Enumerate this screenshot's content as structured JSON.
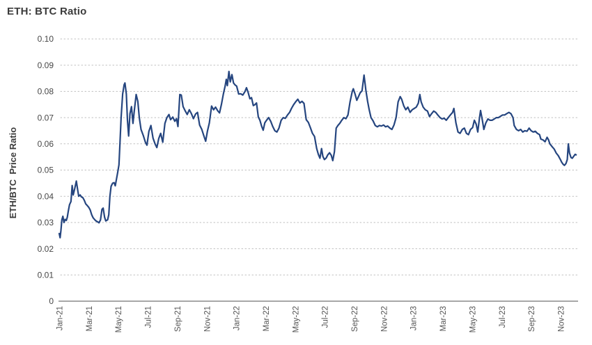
{
  "title": "ETH: BTC Ratio",
  "colors": {
    "line": "#25457f",
    "grid": "#bfbfbf",
    "axis": "#8a8a8a",
    "title": "#3b3b3b",
    "tick_label": "#555555"
  },
  "chart_data": {
    "type": "line",
    "title": "ETH: BTC Ratio",
    "xlabel": "",
    "ylabel": "ETH/BTC  Price Ratio",
    "ylim": [
      0,
      0.1
    ],
    "grid": "horizontal-dotted",
    "legend": "none",
    "y_tick_values": [
      0,
      0.01,
      0.02,
      0.03,
      0.04,
      0.05,
      0.06,
      0.07,
      0.08,
      0.09,
      0.1
    ],
    "y_tick_labels": [
      "0",
      "0.01",
      "0.02",
      "0.03",
      "0.04",
      "0.05",
      "0.06",
      "0.07",
      "0.08",
      "0.09",
      "0.10"
    ],
    "x_tick_labels": [
      "Jan-21",
      "Mar-21",
      "May-21",
      "Jul-21",
      "Sep-21",
      "Nov-21",
      "Jan-22",
      "Mar-22",
      "May-22",
      "Jul-22",
      "Sep-22",
      "Nov-22",
      "Jan-23",
      "Mar-23",
      "May-23",
      "Jul-23",
      "Sep-23",
      "Nov-23"
    ],
    "x_tick_months": [
      0,
      2,
      4,
      6,
      8,
      10,
      12,
      14,
      16,
      18,
      20,
      22,
      24,
      26,
      28,
      30,
      32,
      34
    ],
    "series": [
      {
        "name": "ETH/BTC Price Ratio",
        "points": [
          [
            0.0,
            0.0258
          ],
          [
            0.06,
            0.0242
          ],
          [
            0.12,
            0.027
          ],
          [
            0.18,
            0.031
          ],
          [
            0.25,
            0.0324
          ],
          [
            0.32,
            0.03
          ],
          [
            0.4,
            0.0312
          ],
          [
            0.48,
            0.0308
          ],
          [
            0.55,
            0.032
          ],
          [
            0.62,
            0.0344
          ],
          [
            0.7,
            0.0368
          ],
          [
            0.8,
            0.038
          ],
          [
            0.88,
            0.0441
          ],
          [
            0.95,
            0.0405
          ],
          [
            1.05,
            0.0428
          ],
          [
            1.16,
            0.0458
          ],
          [
            1.25,
            0.0425
          ],
          [
            1.32,
            0.04
          ],
          [
            1.42,
            0.0405
          ],
          [
            1.5,
            0.0398
          ],
          [
            1.6,
            0.0395
          ],
          [
            1.7,
            0.0385
          ],
          [
            1.8,
            0.0371
          ],
          [
            1.9,
            0.0365
          ],
          [
            2.0,
            0.0358
          ],
          [
            2.1,
            0.0348
          ],
          [
            2.2,
            0.033
          ],
          [
            2.3,
            0.0318
          ],
          [
            2.42,
            0.031
          ],
          [
            2.52,
            0.0305
          ],
          [
            2.62,
            0.0302
          ],
          [
            2.7,
            0.0299
          ],
          [
            2.8,
            0.031
          ],
          [
            2.9,
            0.035
          ],
          [
            2.98,
            0.0355
          ],
          [
            3.08,
            0.032
          ],
          [
            3.16,
            0.0306
          ],
          [
            3.28,
            0.031
          ],
          [
            3.36,
            0.033
          ],
          [
            3.44,
            0.04
          ],
          [
            3.52,
            0.0438
          ],
          [
            3.62,
            0.045
          ],
          [
            3.72,
            0.0452
          ],
          [
            3.8,
            0.044
          ],
          [
            3.88,
            0.0465
          ],
          [
            3.96,
            0.049
          ],
          [
            4.05,
            0.052
          ],
          [
            4.12,
            0.06
          ],
          [
            4.2,
            0.07
          ],
          [
            4.3,
            0.079
          ],
          [
            4.4,
            0.0825
          ],
          [
            4.46,
            0.0832
          ],
          [
            4.55,
            0.079
          ],
          [
            4.63,
            0.069
          ],
          [
            4.71,
            0.063
          ],
          [
            4.8,
            0.0715
          ],
          [
            4.9,
            0.0742
          ],
          [
            5.0,
            0.0678
          ],
          [
            5.1,
            0.073
          ],
          [
            5.22,
            0.0788
          ],
          [
            5.33,
            0.0762
          ],
          [
            5.43,
            0.07
          ],
          [
            5.55,
            0.0655
          ],
          [
            5.7,
            0.0632
          ],
          [
            5.85,
            0.0605
          ],
          [
            5.95,
            0.0595
          ],
          [
            6.08,
            0.0648
          ],
          [
            6.22,
            0.067
          ],
          [
            6.36,
            0.0622
          ],
          [
            6.5,
            0.06
          ],
          [
            6.62,
            0.0586
          ],
          [
            6.75,
            0.062
          ],
          [
            6.88,
            0.064
          ],
          [
            7.02,
            0.0606
          ],
          [
            7.17,
            0.0678
          ],
          [
            7.3,
            0.07
          ],
          [
            7.44,
            0.0712
          ],
          [
            7.55,
            0.0692
          ],
          [
            7.7,
            0.0702
          ],
          [
            7.84,
            0.0686
          ],
          [
            7.95,
            0.0696
          ],
          [
            8.05,
            0.0666
          ],
          [
            8.18,
            0.0788
          ],
          [
            8.28,
            0.0786
          ],
          [
            8.4,
            0.0742
          ],
          [
            8.55,
            0.0725
          ],
          [
            8.68,
            0.0712
          ],
          [
            8.82,
            0.073
          ],
          [
            8.96,
            0.0716
          ],
          [
            9.1,
            0.0696
          ],
          [
            9.25,
            0.0714
          ],
          [
            9.38,
            0.072
          ],
          [
            9.52,
            0.0672
          ],
          [
            9.66,
            0.0656
          ],
          [
            9.8,
            0.0632
          ],
          [
            9.93,
            0.061
          ],
          [
            10.05,
            0.0648
          ],
          [
            10.18,
            0.068
          ],
          [
            10.33,
            0.0744
          ],
          [
            10.47,
            0.073
          ],
          [
            10.6,
            0.074
          ],
          [
            10.75,
            0.0726
          ],
          [
            10.87,
            0.0718
          ],
          [
            11.0,
            0.075
          ],
          [
            11.13,
            0.079
          ],
          [
            11.25,
            0.082
          ],
          [
            11.33,
            0.0846
          ],
          [
            11.4,
            0.0822
          ],
          [
            11.51,
            0.0876
          ],
          [
            11.6,
            0.0836
          ],
          [
            11.71,
            0.0864
          ],
          [
            11.82,
            0.0832
          ],
          [
            11.92,
            0.0825
          ],
          [
            12.03,
            0.082
          ],
          [
            12.17,
            0.079
          ],
          [
            12.31,
            0.0791
          ],
          [
            12.45,
            0.0786
          ],
          [
            12.6,
            0.08
          ],
          [
            12.7,
            0.0814
          ],
          [
            12.81,
            0.0796
          ],
          [
            12.93,
            0.0772
          ],
          [
            13.04,
            0.0776
          ],
          [
            13.16,
            0.0746
          ],
          [
            13.28,
            0.075
          ],
          [
            13.38,
            0.0756
          ],
          [
            13.5,
            0.0702
          ],
          [
            13.61,
            0.069
          ],
          [
            13.73,
            0.0666
          ],
          [
            13.83,
            0.0652
          ],
          [
            13.94,
            0.068
          ],
          [
            14.06,
            0.069
          ],
          [
            14.2,
            0.07
          ],
          [
            14.34,
            0.0686
          ],
          [
            14.48,
            0.0666
          ],
          [
            14.62,
            0.065
          ],
          [
            14.76,
            0.0645
          ],
          [
            14.9,
            0.066
          ],
          [
            15.05,
            0.069
          ],
          [
            15.19,
            0.07
          ],
          [
            15.33,
            0.0697
          ],
          [
            15.48,
            0.071
          ],
          [
            15.62,
            0.072
          ],
          [
            15.76,
            0.0736
          ],
          [
            15.9,
            0.075
          ],
          [
            16.04,
            0.0761
          ],
          [
            16.18,
            0.077
          ],
          [
            16.32,
            0.0756
          ],
          [
            16.46,
            0.0762
          ],
          [
            16.6,
            0.0754
          ],
          [
            16.75,
            0.0692
          ],
          [
            16.89,
            0.0682
          ],
          [
            17.03,
            0.0662
          ],
          [
            17.17,
            0.064
          ],
          [
            17.31,
            0.0628
          ],
          [
            17.46,
            0.0582
          ],
          [
            17.57,
            0.056
          ],
          [
            17.68,
            0.0545
          ],
          [
            17.79,
            0.0582
          ],
          [
            17.88,
            0.0552
          ],
          [
            17.98,
            0.054
          ],
          [
            18.1,
            0.0546
          ],
          [
            18.21,
            0.0558
          ],
          [
            18.33,
            0.0566
          ],
          [
            18.45,
            0.0556
          ],
          [
            18.55,
            0.0536
          ],
          [
            18.66,
            0.057
          ],
          [
            18.78,
            0.066
          ],
          [
            18.9,
            0.067
          ],
          [
            19.02,
            0.0678
          ],
          [
            19.16,
            0.069
          ],
          [
            19.3,
            0.07
          ],
          [
            19.44,
            0.0696
          ],
          [
            19.58,
            0.071
          ],
          [
            19.72,
            0.076
          ],
          [
            19.87,
            0.08
          ],
          [
            19.94,
            0.081
          ],
          [
            20.06,
            0.079
          ],
          [
            20.18,
            0.0766
          ],
          [
            20.29,
            0.078
          ],
          [
            20.41,
            0.0795
          ],
          [
            20.53,
            0.0802
          ],
          [
            20.67,
            0.0862
          ],
          [
            20.79,
            0.0805
          ],
          [
            20.91,
            0.0762
          ],
          [
            21.02,
            0.073
          ],
          [
            21.14,
            0.07
          ],
          [
            21.28,
            0.0688
          ],
          [
            21.43,
            0.067
          ],
          [
            21.57,
            0.0665
          ],
          [
            21.71,
            0.067
          ],
          [
            21.85,
            0.0668
          ],
          [
            21.99,
            0.0672
          ],
          [
            22.13,
            0.0665
          ],
          [
            22.27,
            0.0668
          ],
          [
            22.42,
            0.066
          ],
          [
            22.56,
            0.0655
          ],
          [
            22.7,
            0.0672
          ],
          [
            22.84,
            0.07
          ],
          [
            22.98,
            0.076
          ],
          [
            23.12,
            0.078
          ],
          [
            23.22,
            0.077
          ],
          [
            23.36,
            0.0745
          ],
          [
            23.5,
            0.073
          ],
          [
            23.64,
            0.074
          ],
          [
            23.79,
            0.072
          ],
          [
            23.93,
            0.073
          ],
          [
            24.07,
            0.0735
          ],
          [
            24.21,
            0.074
          ],
          [
            24.35,
            0.0755
          ],
          [
            24.45,
            0.0788
          ],
          [
            24.54,
            0.076
          ],
          [
            24.68,
            0.074
          ],
          [
            24.82,
            0.073
          ],
          [
            24.97,
            0.0725
          ],
          [
            25.11,
            0.0704
          ],
          [
            25.25,
            0.0715
          ],
          [
            25.39,
            0.0725
          ],
          [
            25.53,
            0.072
          ],
          [
            25.67,
            0.071
          ],
          [
            25.82,
            0.07
          ],
          [
            25.96,
            0.0695
          ],
          [
            26.1,
            0.0698
          ],
          [
            26.24,
            0.069
          ],
          [
            26.38,
            0.07
          ],
          [
            26.52,
            0.071
          ],
          [
            26.67,
            0.072
          ],
          [
            26.76,
            0.0735
          ],
          [
            26.9,
            0.068
          ],
          [
            27.04,
            0.0645
          ],
          [
            27.18,
            0.064
          ],
          [
            27.33,
            0.0655
          ],
          [
            27.47,
            0.066
          ],
          [
            27.61,
            0.064
          ],
          [
            27.75,
            0.0635
          ],
          [
            27.89,
            0.0655
          ],
          [
            28.03,
            0.0662
          ],
          [
            28.15,
            0.069
          ],
          [
            28.27,
            0.0675
          ],
          [
            28.38,
            0.0645
          ],
          [
            28.5,
            0.07
          ],
          [
            28.57,
            0.0727
          ],
          [
            28.69,
            0.069
          ],
          [
            28.79,
            0.0655
          ],
          [
            28.93,
            0.068
          ],
          [
            29.07,
            0.0695
          ],
          [
            29.21,
            0.069
          ],
          [
            29.35,
            0.069
          ],
          [
            29.5,
            0.0695
          ],
          [
            29.64,
            0.07
          ],
          [
            29.78,
            0.07
          ],
          [
            29.92,
            0.0705
          ],
          [
            30.06,
            0.071
          ],
          [
            30.2,
            0.071
          ],
          [
            30.34,
            0.0715
          ],
          [
            30.49,
            0.072
          ],
          [
            30.63,
            0.0715
          ],
          [
            30.77,
            0.07
          ],
          [
            30.85,
            0.067
          ],
          [
            31.0,
            0.0655
          ],
          [
            31.15,
            0.065
          ],
          [
            31.29,
            0.0655
          ],
          [
            31.43,
            0.0645
          ],
          [
            31.57,
            0.065
          ],
          [
            31.72,
            0.0648
          ],
          [
            31.86,
            0.066
          ],
          [
            32.0,
            0.065
          ],
          [
            32.14,
            0.0645
          ],
          [
            32.28,
            0.0648
          ],
          [
            32.42,
            0.064
          ],
          [
            32.57,
            0.0635
          ],
          [
            32.66,
            0.0618
          ],
          [
            32.8,
            0.0615
          ],
          [
            32.94,
            0.0608
          ],
          [
            33.08,
            0.0625
          ],
          [
            33.18,
            0.0615
          ],
          [
            33.27,
            0.06
          ],
          [
            33.41,
            0.059
          ],
          [
            33.56,
            0.058
          ],
          [
            33.7,
            0.0565
          ],
          [
            33.84,
            0.0555
          ],
          [
            33.98,
            0.054
          ],
          [
            34.07,
            0.053
          ],
          [
            34.17,
            0.0522
          ],
          [
            34.26,
            0.0518
          ],
          [
            34.36,
            0.0525
          ],
          [
            34.45,
            0.054
          ],
          [
            34.52,
            0.06
          ],
          [
            34.6,
            0.0565
          ],
          [
            34.7,
            0.0548
          ],
          [
            34.79,
            0.0545
          ],
          [
            34.88,
            0.0552
          ],
          [
            34.98,
            0.056
          ],
          [
            35.05,
            0.0558
          ]
        ]
      }
    ]
  }
}
